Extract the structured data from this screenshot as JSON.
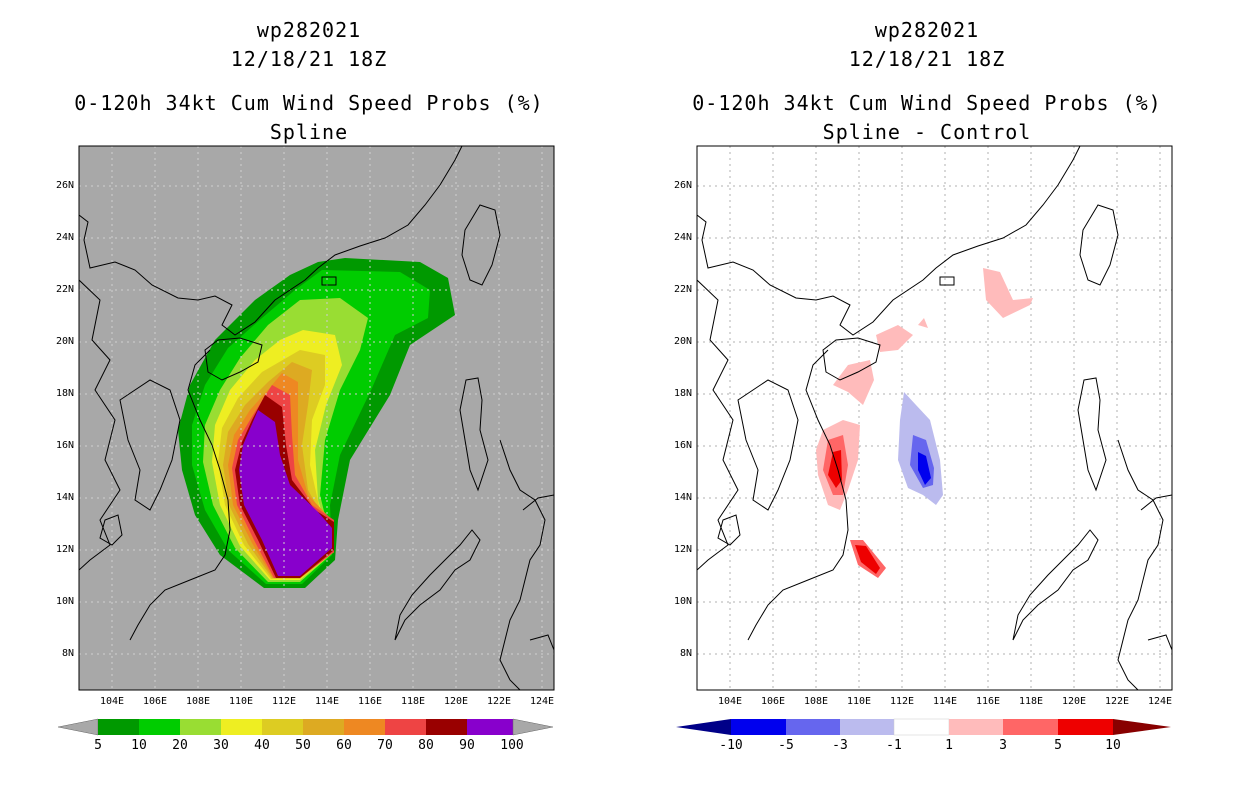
{
  "left": {
    "storm_id": "wp282021",
    "datetime": "12/18/21 18Z",
    "product": "0-120h 34kt Cum Wind Speed Probs (%)",
    "subtitle": "Spline",
    "background_color": "#a8a8a8",
    "colorbar": {
      "labels": [
        "5",
        "10",
        "20",
        "30",
        "40",
        "50",
        "60",
        "70",
        "80",
        "90",
        "100"
      ],
      "colors": [
        "#009900",
        "#00cc00",
        "#99dd33",
        "#eeee22",
        "#ddcc22",
        "#ddaa22",
        "#ee8822",
        "#ee4444",
        "#990000",
        "#8800cc"
      ]
    }
  },
  "right": {
    "storm_id": "wp282021",
    "datetime": "12/18/21 18Z",
    "product": "0-120h 34kt Cum Wind Speed Probs (%)",
    "subtitle": "Spline - Control",
    "background_color": "#ffffff",
    "colorbar": {
      "labels": [
        "-10",
        "-5",
        "-3",
        "-1",
        "1",
        "3",
        "5",
        "10"
      ],
      "colors": [
        "#000088",
        "#0000ee",
        "#6666ee",
        "#bbbbee",
        "#ffffff",
        "#ffbbbb",
        "#ff6666",
        "#ee0000",
        "#880000"
      ]
    }
  },
  "axes": {
    "lat_labels": [
      "26N",
      "24N",
      "22N",
      "20N",
      "18N",
      "16N",
      "14N",
      "12N",
      "10N",
      "8N"
    ],
    "lon_labels": [
      "104E",
      "106E",
      "108E",
      "110E",
      "112E",
      "114E",
      "116E",
      "118E",
      "120E",
      "122E",
      "124E"
    ]
  }
}
